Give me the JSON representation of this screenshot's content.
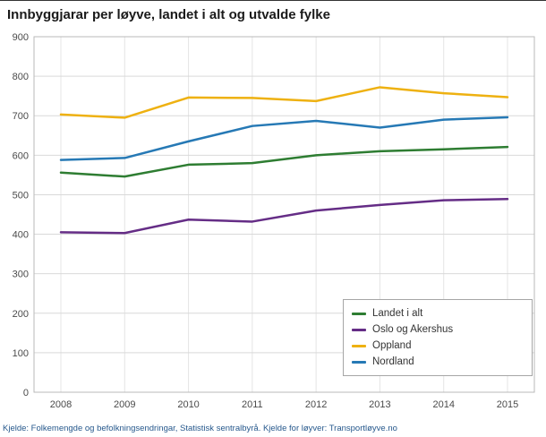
{
  "title": "Innbyggjarar per løyve, landet i alt og utvalde fylke",
  "footer": {
    "source": "Kjelde: Folkemengde og befolkningsendringar, Statistisk sentralbyrå. Kjelde for løyver: Transportløyve.no"
  },
  "chart_data": {
    "type": "line",
    "title": "Innbyggjarar per løyve, landet i alt og utvalde fylke",
    "x": [
      2008,
      2009,
      2010,
      2011,
      2012,
      2013,
      2014,
      2015
    ],
    "series": [
      {
        "name": "Landet i alt",
        "color": "#2e7d32",
        "values": [
          556,
          546,
          576,
          580,
          600,
          610,
          615,
          621
        ]
      },
      {
        "name": "Oslo og Akershus",
        "color": "#652d86",
        "values": [
          405,
          403,
          437,
          432,
          460,
          474,
          486,
          489
        ]
      },
      {
        "name": "Oppland",
        "color": "#eeb111",
        "values": [
          703,
          695,
          746,
          745,
          737,
          772,
          757,
          747
        ]
      },
      {
        "name": "Nordland",
        "color": "#2679b5",
        "values": [
          588,
          593,
          635,
          674,
          687,
          670,
          690,
          696
        ]
      }
    ],
    "xlabel": "",
    "ylabel": "",
    "ylim": [
      0,
      900
    ],
    "yticks": [
      0,
      100,
      200,
      300,
      400,
      500,
      600,
      700,
      800,
      900
    ],
    "grid": true,
    "legend_position": "bottom-right-inside"
  }
}
